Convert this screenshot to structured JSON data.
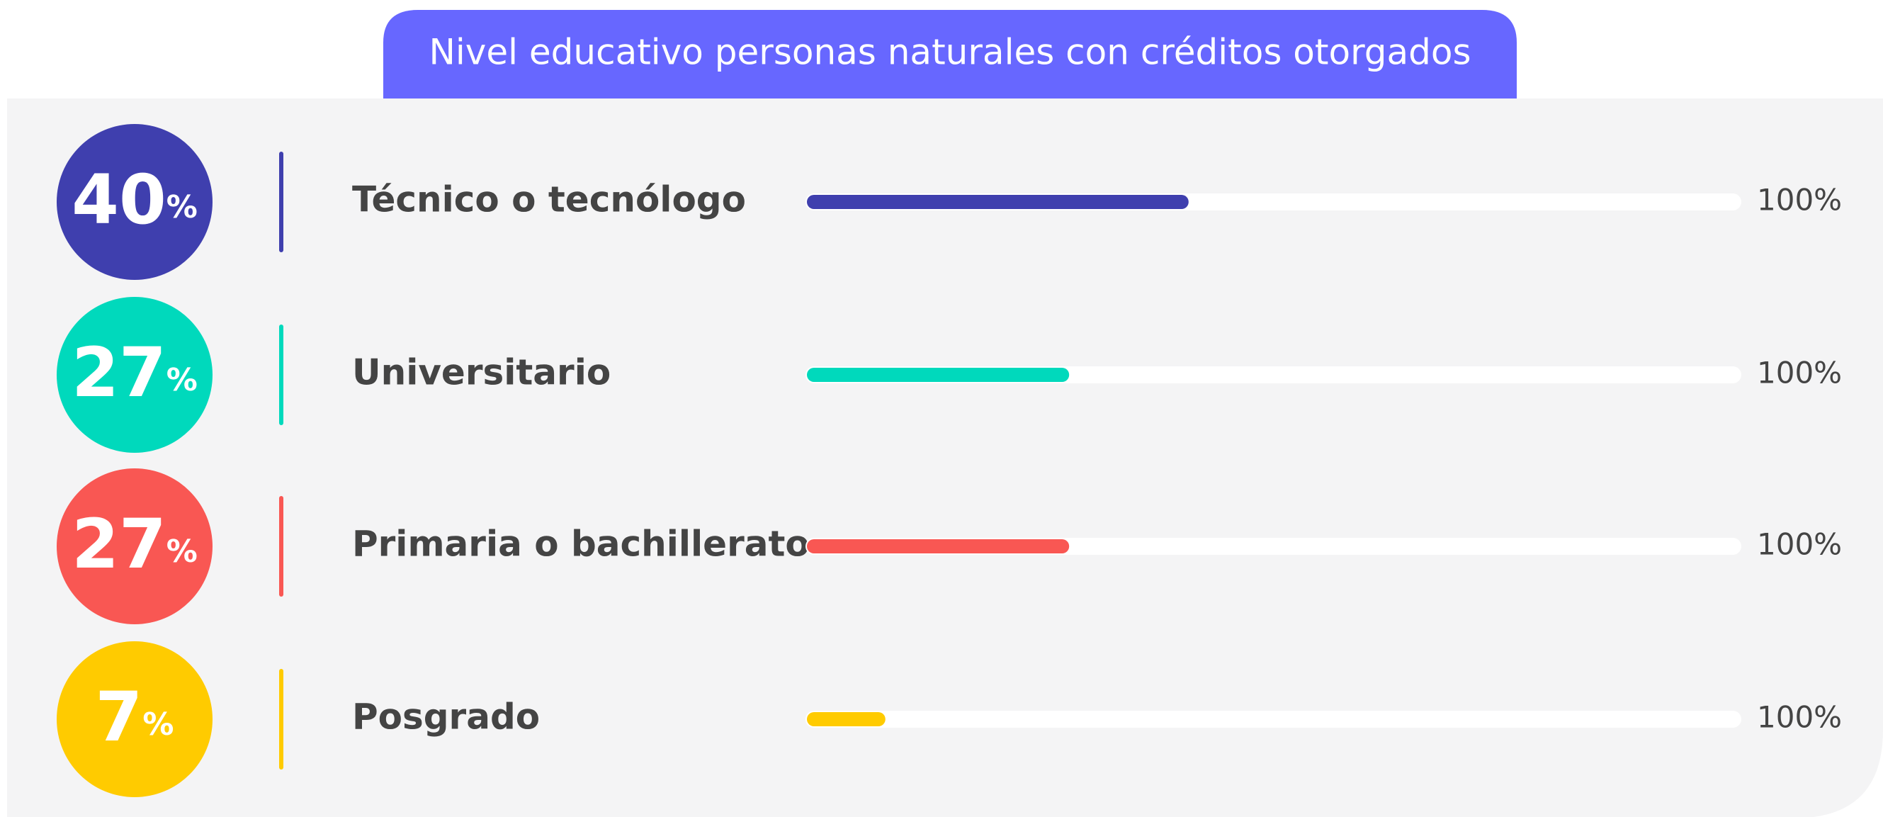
{
  "chart_data": {
    "type": "bar",
    "title": "Nivel educativo personas naturales con créditos otorgados",
    "categories": [
      "Técnico o tecnólogo",
      "Universitario",
      "Primaria o bachillerato",
      "Posgrado"
    ],
    "values": [
      40,
      27,
      27,
      7
    ],
    "unit": "%",
    "colors": [
      "#3f3fae",
      "#00d9bc",
      "#f95753",
      "#ffcb00"
    ],
    "xlim": [
      0,
      100
    ],
    "xticks": [
      {
        "value": 100,
        "label": "100%"
      }
    ]
  }
}
